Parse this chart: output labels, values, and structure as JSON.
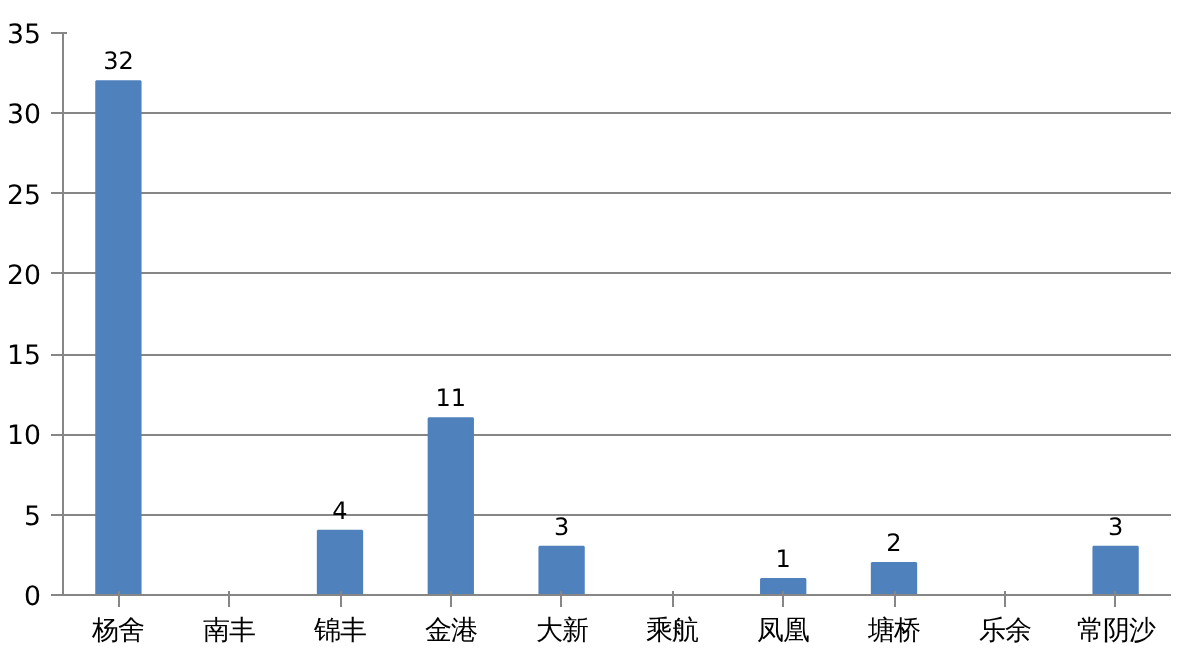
{
  "chart_data": {
    "type": "bar",
    "categories": [
      "杨舍",
      "南丰",
      "锦丰",
      "金港",
      "大新",
      "乘航",
      "凤凰",
      "塘桥",
      "乐余",
      "常阴沙"
    ],
    "values": [
      32,
      null,
      4,
      11,
      3,
      null,
      1,
      2,
      null,
      3
    ],
    "color": "#4f81bd",
    "ylim": [
      0,
      35
    ],
    "yticks": [
      0,
      5,
      10,
      15,
      20,
      25,
      30,
      35
    ],
    "grid": "y",
    "data_labels": true
  }
}
